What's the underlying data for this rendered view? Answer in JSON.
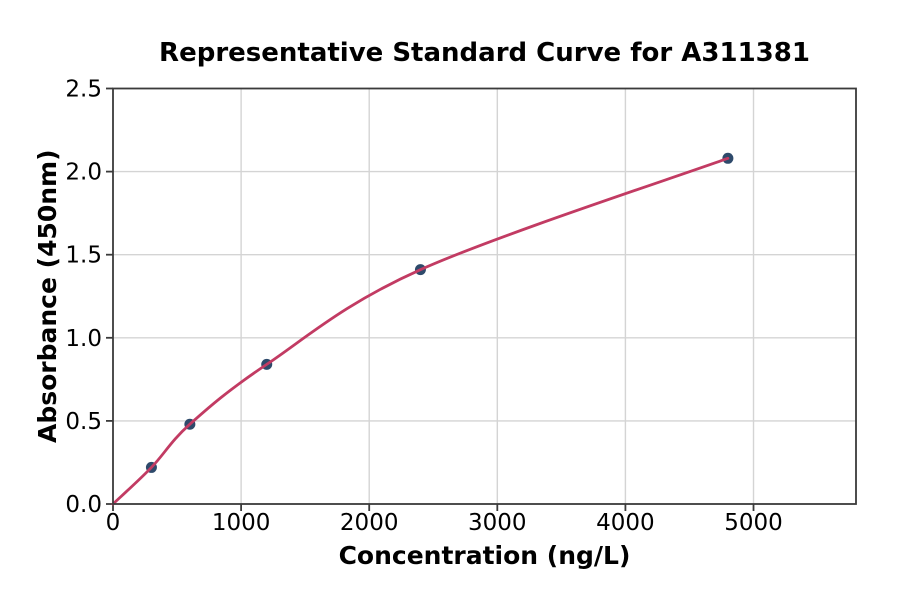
{
  "chart_data": {
    "type": "scatter",
    "title": "Representative Standard Curve for A311381",
    "xlabel": "Concentration (ng/L)",
    "ylabel": "Absorbance (450nm)",
    "x": [
      300,
      600,
      1200,
      2400,
      4800
    ],
    "y": [
      0.22,
      0.48,
      0.84,
      1.41,
      2.08
    ],
    "curve_start": [
      0,
      0
    ],
    "xlim": [
      0,
      5800
    ],
    "ylim": [
      0,
      2.5
    ],
    "x_ticks": [
      0,
      1000,
      2000,
      3000,
      4000,
      5000
    ],
    "x_tick_labels": [
      "0",
      "1000",
      "2000",
      "3000",
      "4000",
      "5000"
    ],
    "y_ticks": [
      0.0,
      0.5,
      1.0,
      1.5,
      2.0,
      2.5
    ],
    "y_tick_labels": [
      "0.0",
      "0.5",
      "1.0",
      "1.5",
      "2.0",
      "2.5"
    ],
    "grid": true,
    "legend_position": "none",
    "colors": {
      "marker": "#2e4a6b",
      "curve": "#c23b63",
      "grid": "#d4d4d4",
      "spine": "#3b3b3b",
      "text": "#000000",
      "background": "#ffffff"
    }
  }
}
